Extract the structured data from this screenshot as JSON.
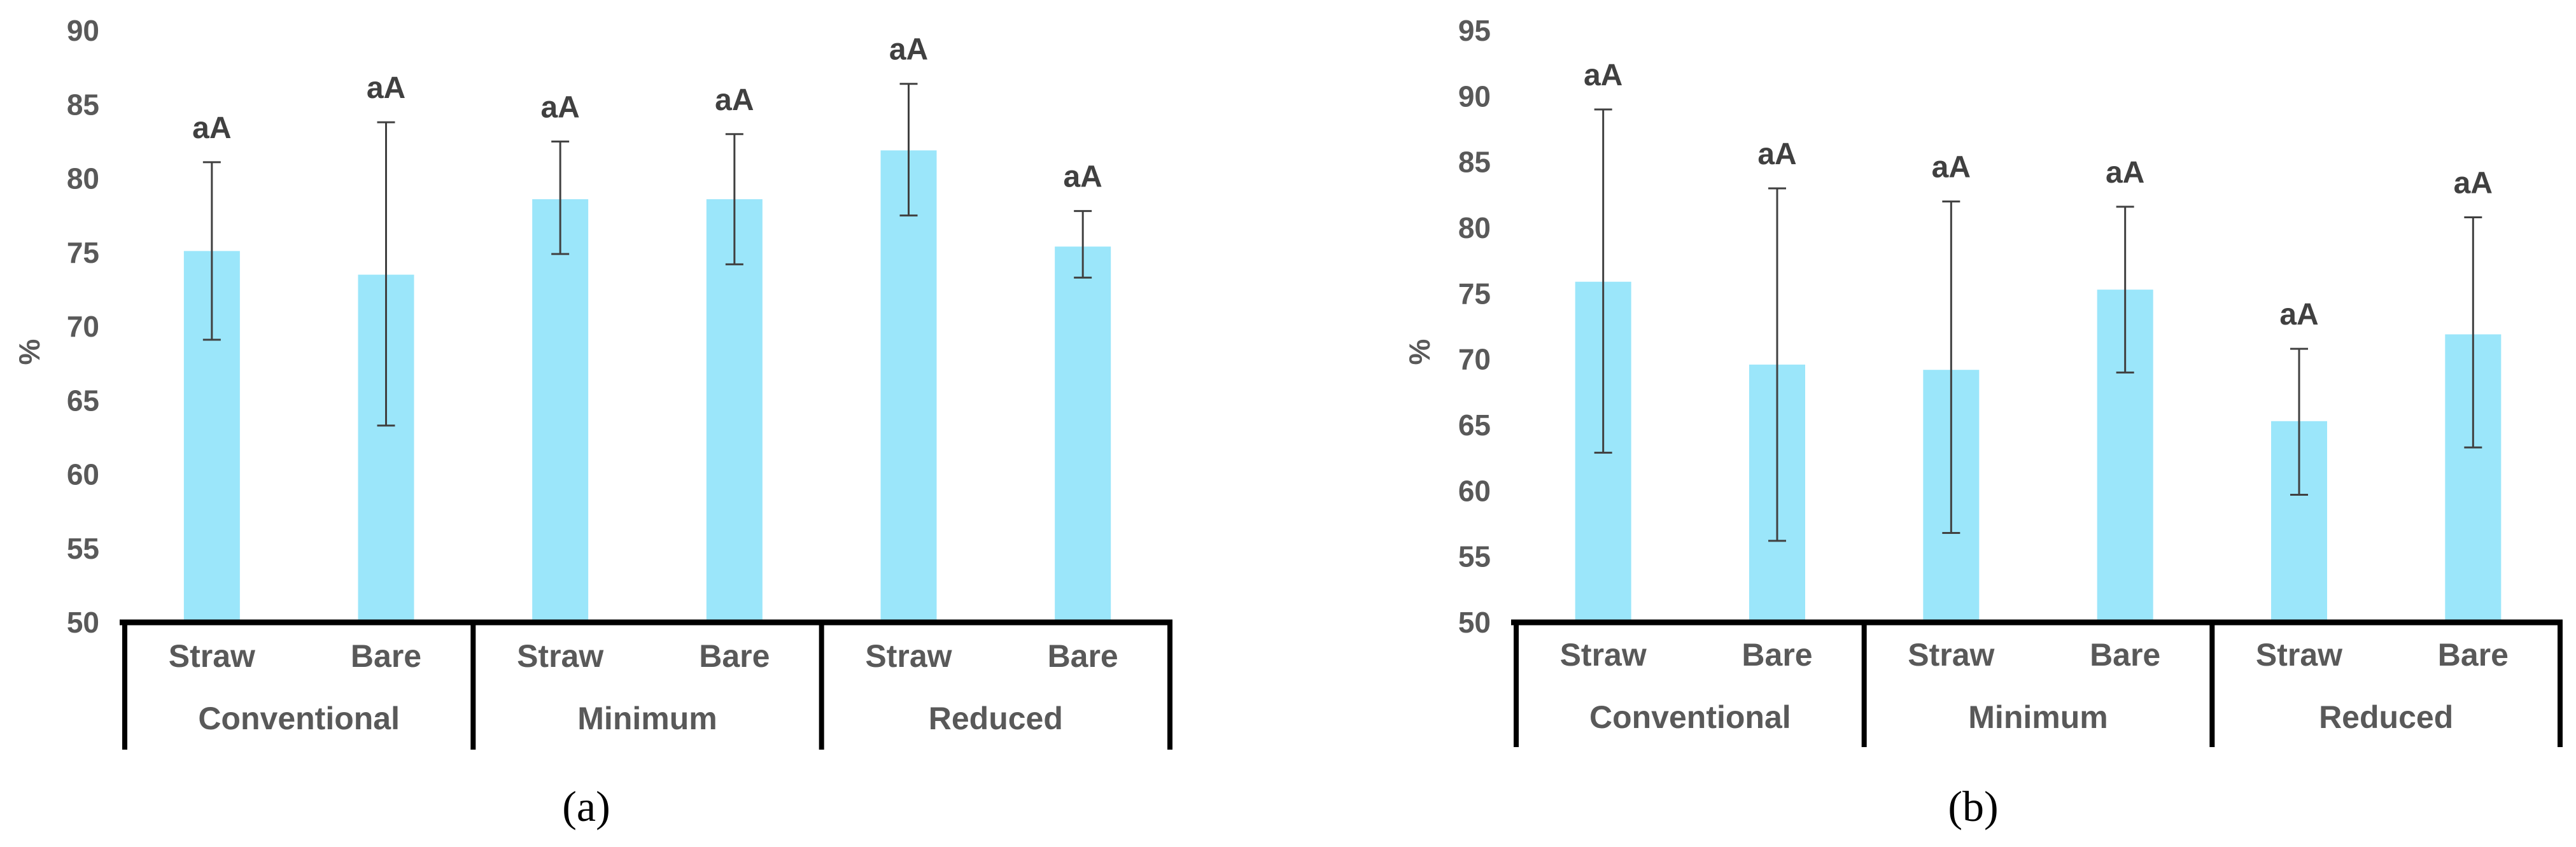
{
  "colors": {
    "bar": "#9be6fa",
    "error": "#404040",
    "axis": "#000000",
    "text": "#595959"
  },
  "chart_data": [
    {
      "type": "bar",
      "panel_label": "(a)",
      "panel_letter": "b_a",
      "ylabel": "%",
      "ylim": [
        50,
        90
      ],
      "yticks": [
        50,
        55,
        60,
        65,
        70,
        75,
        80,
        85,
        90
      ],
      "groups": [
        "Conventional",
        "Minimum",
        "Reduced"
      ],
      "categories": [
        "Straw",
        "Bare",
        "Straw",
        "Bare",
        "Straw",
        "Bare"
      ],
      "values": [
        75.1,
        73.5,
        78.6,
        78.6,
        81.9,
        75.4
      ],
      "error_low": [
        69.1,
        63.3,
        74.9,
        74.2,
        77.5,
        73.3
      ],
      "error_high": [
        81.1,
        83.8,
        82.5,
        83.0,
        86.4,
        77.8
      ],
      "labels": [
        "aA",
        "aA",
        "aA",
        "aA",
        "aA",
        "aA"
      ],
      "grid": false
    },
    {
      "type": "bar",
      "panel_label": "(b)",
      "ylabel": "%",
      "ylim": [
        50,
        95
      ],
      "yticks": [
        50,
        55,
        60,
        65,
        70,
        75,
        80,
        85,
        90,
        95
      ],
      "groups": [
        "Conventional",
        "Minimum",
        "Reduced"
      ],
      "categories": [
        "Straw",
        "Bare",
        "Straw",
        "Bare",
        "Straw",
        "Bare"
      ],
      "values": [
        75.9,
        69.6,
        69.2,
        75.3,
        65.3,
        71.9
      ],
      "error_low": [
        62.9,
        56.2,
        56.8,
        69.0,
        59.7,
        63.3
      ],
      "error_high": [
        89.0,
        83.0,
        82.0,
        81.6,
        70.8,
        80.8
      ],
      "labels": [
        "aA",
        "aA",
        "aA",
        "aA",
        "aA",
        "aA"
      ],
      "grid": false
    }
  ]
}
